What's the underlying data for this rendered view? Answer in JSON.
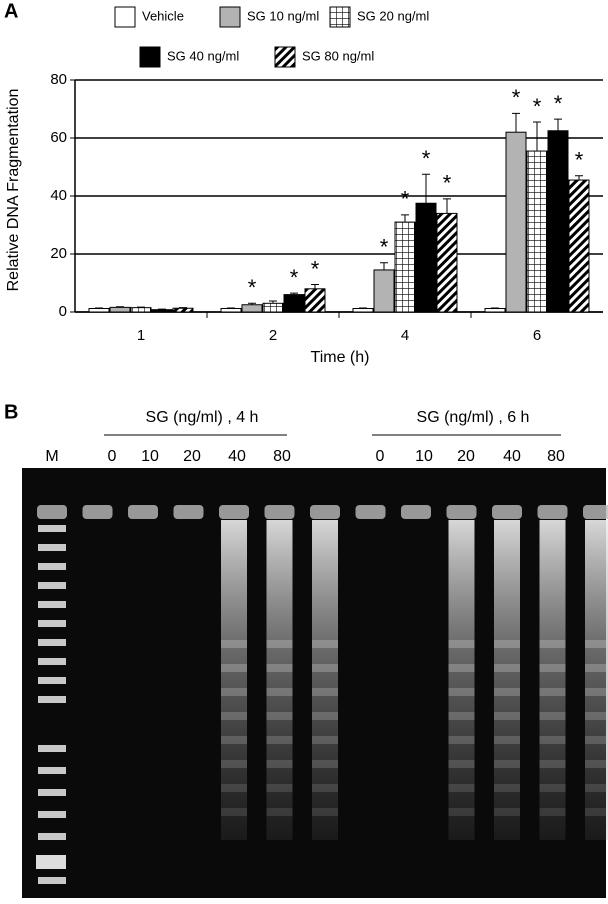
{
  "chart_data": {
    "type": "bar",
    "panel": "A",
    "ylabel": "Relative DNA Fragmentation",
    "xlabel": "Time (h)",
    "categories": [
      "1",
      "2",
      "4",
      "6"
    ],
    "ylim": [
      0,
      80
    ],
    "yticks": [
      0,
      20,
      40,
      60,
      80
    ],
    "grid": true,
    "series": [
      {
        "name": "Vehicle",
        "color": "#ffffff",
        "pattern": "solid",
        "values": [
          1.2,
          1.2,
          1.2,
          1.2
        ],
        "errors": [
          0.2,
          0.2,
          0.2,
          0.2
        ],
        "significance": [
          null,
          null,
          null,
          null
        ]
      },
      {
        "name": "SG 10 ng/ml",
        "color": "#b3b3b3",
        "pattern": "solid",
        "values": [
          1.6,
          2.5,
          14.5,
          62
        ],
        "errors": [
          0.2,
          0.5,
          2.5,
          6.5
        ],
        "significance": [
          null,
          "*",
          "*",
          "*"
        ]
      },
      {
        "name": "SG 20 ng/ml",
        "color": "#ffffff",
        "pattern": "grid",
        "values": [
          1.5,
          3,
          31,
          55.5
        ],
        "errors": [
          0.2,
          0.8,
          2.5,
          10
        ],
        "significance": [
          null,
          null,
          "*",
          "*"
        ]
      },
      {
        "name": "SG 40 ng/ml",
        "color": "#000000",
        "pattern": "solid",
        "values": [
          0.8,
          6,
          37.5,
          62.5
        ],
        "errors": [
          0.2,
          0.5,
          10,
          4
        ],
        "significance": [
          null,
          "*",
          "*",
          "*"
        ]
      },
      {
        "name": "SG 80 ng/ml",
        "color": "#ffffff",
        "pattern": "hatch",
        "values": [
          1.3,
          8,
          34,
          45.5
        ],
        "errors": [
          0.2,
          1.5,
          5,
          1.5
        ],
        "significance": [
          null,
          "*",
          "*",
          "*"
        ]
      }
    ]
  },
  "panel_b": {
    "panel": "B",
    "marker": "M",
    "groups": [
      {
        "title": "SG (ng/ml) , 4 h",
        "lanes": [
          "0",
          "10",
          "20",
          "40",
          "80"
        ]
      },
      {
        "title": "SG (ng/ml) , 6 h",
        "lanes": [
          "0",
          "10",
          "20",
          "40",
          "80"
        ]
      }
    ]
  }
}
